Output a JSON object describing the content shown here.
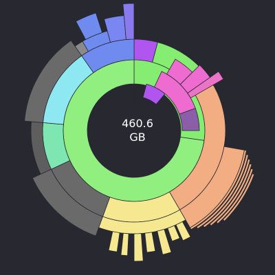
{
  "center": {
    "value": "460.6",
    "unit": "GB"
  },
  "colors": {
    "background": "#272830",
    "ring1": "#85ee72",
    "ring2": "#90ef7f",
    "orange": "#f2ae82",
    "yellow": "#f6e890",
    "gray": "#6a6a6a",
    "blue": "#6f8bef",
    "cyan": "#8ee8f2",
    "purple": "#b055f0",
    "pink": "#ee6bd0",
    "violet": "#8a5ea8"
  }
}
